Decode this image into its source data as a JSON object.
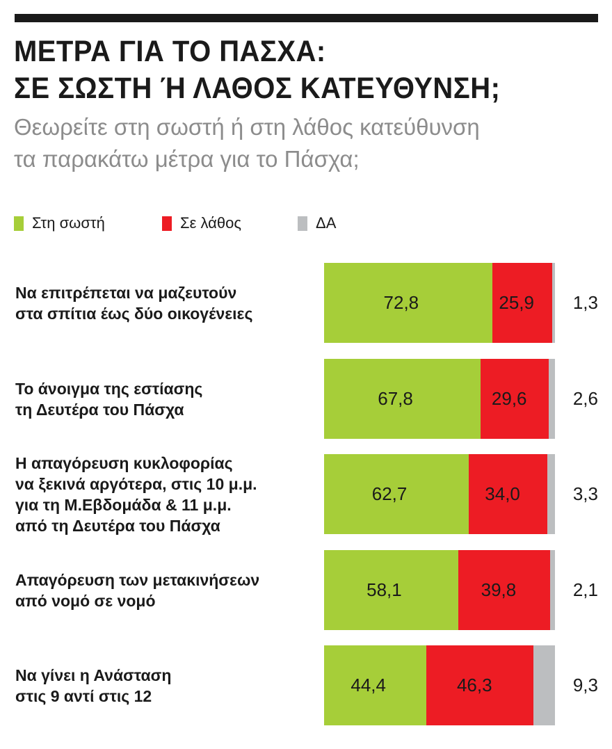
{
  "title_lines": [
    "ΜΕΤΡΑ ΓΙΑ ΤΟ ΠΑΣΧΑ:",
    "ΣΕ ΣΩΣΤΗ Ή ΛΑΘΟΣ ΚΑΤΕΥΘΥΝΣΗ;"
  ],
  "subtitle_lines": [
    "Θεωρείτε στη σωστή ή στη λάθος κατεύθυνση",
    "τα παρακάτω μέτρα για το Πάσχα;"
  ],
  "chart_data": {
    "type": "bar",
    "orientation": "horizontal",
    "stacked": true,
    "legend_position": "top-left",
    "grid": false,
    "xlim": [
      0,
      100
    ],
    "categories": [
      "Να επιτρέπεται να μαζευτούν\nστα σπίτια έως δύο οικογένειες",
      "Το άνοιγμα της εστίασης\nτη Δευτέρα του Πάσχα",
      "Η απαγόρευση κυκλοφορίας\nνα ξεκινά αργότερα, στις 10 μ.μ.\nγια τη Μ.Εβδομάδα & 11 μ.μ.\nαπό τη Δευτέρα του Πάσχα",
      "Απαγόρευση των μετακινήσεων\nαπό νομό σε νομό",
      "Να γίνει η Ανάσταση\nστις 9 αντί στις 12"
    ],
    "series": [
      {
        "name": "Στη σωστή",
        "color": "#a6ce39",
        "values": [
          72.8,
          67.8,
          62.7,
          58.1,
          44.4
        ],
        "labels": [
          "72,8",
          "67,8",
          "62,7",
          "58,1",
          "44,4"
        ]
      },
      {
        "name": "Σε λάθος",
        "color": "#ed1c24",
        "values": [
          25.9,
          29.6,
          34.0,
          39.8,
          46.3
        ],
        "labels": [
          "25,9",
          "29,6",
          "34,0",
          "39,8",
          "46,3"
        ]
      },
      {
        "name": "ΔΑ",
        "color": "#bcbec0",
        "values": [
          1.3,
          2.6,
          3.3,
          2.1,
          9.3
        ],
        "labels": [
          "1,3",
          "2,6",
          "3,3",
          "2,1",
          "9,3"
        ]
      }
    ]
  }
}
